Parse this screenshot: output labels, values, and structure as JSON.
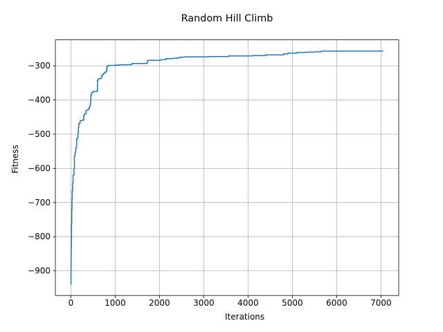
{
  "chart_data": {
    "type": "line",
    "title": "Random Hill Climb",
    "xlabel": "Iterations",
    "ylabel": "Fitness",
    "xlim": [
      -350,
      7400
    ],
    "ylim": [
      -972,
      -224
    ],
    "xticks": [
      0,
      1000,
      2000,
      3000,
      4000,
      5000,
      6000,
      7000
    ],
    "yticks": [
      -900,
      -800,
      -700,
      -600,
      -500,
      -400,
      -300
    ],
    "xtick_labels": [
      "0",
      "1000",
      "2000",
      "3000",
      "4000",
      "5000",
      "6000",
      "7000"
    ],
    "ytick_labels": [
      "−900",
      "−800",
      "−700",
      "−600",
      "−500",
      "−400",
      "−300"
    ],
    "grid": true,
    "legend": "none",
    "line_color": "#1f77b4",
    "series": [
      {
        "values": [
          [
            0,
            -940
          ],
          [
            2,
            -900
          ],
          [
            5,
            -855
          ],
          [
            8,
            -830
          ],
          [
            12,
            -800
          ],
          [
            15,
            -760
          ],
          [
            20,
            -720
          ],
          [
            25,
            -690
          ],
          [
            30,
            -665
          ],
          [
            40,
            -640
          ],
          [
            50,
            -620
          ],
          [
            65,
            -617
          ],
          [
            70,
            -600
          ],
          [
            80,
            -563
          ],
          [
            95,
            -553
          ],
          [
            110,
            -540
          ],
          [
            125,
            -537
          ],
          [
            130,
            -515
          ],
          [
            145,
            -510
          ],
          [
            160,
            -495
          ],
          [
            170,
            -480
          ],
          [
            180,
            -468
          ],
          [
            210,
            -460
          ],
          [
            270,
            -458
          ],
          [
            290,
            -445
          ],
          [
            310,
            -440
          ],
          [
            340,
            -430
          ],
          [
            390,
            -425
          ],
          [
            420,
            -418
          ],
          [
            440,
            -408
          ],
          [
            450,
            -385
          ],
          [
            470,
            -378
          ],
          [
            500,
            -375
          ],
          [
            580,
            -374
          ],
          [
            600,
            -342
          ],
          [
            620,
            -338
          ],
          [
            650,
            -337
          ],
          [
            690,
            -330
          ],
          [
            710,
            -325
          ],
          [
            740,
            -322
          ],
          [
            770,
            -318
          ],
          [
            800,
            -316
          ],
          [
            810,
            -302
          ],
          [
            840,
            -299
          ],
          [
            990,
            -298
          ],
          [
            1100,
            -297
          ],
          [
            1350,
            -296
          ],
          [
            1380,
            -293
          ],
          [
            1700,
            -292
          ],
          [
            1730,
            -284
          ],
          [
            2000,
            -283
          ],
          [
            2050,
            -282
          ],
          [
            2150,
            -279
          ],
          [
            2300,
            -278
          ],
          [
            2400,
            -277
          ],
          [
            2450,
            -275
          ],
          [
            2550,
            -274
          ],
          [
            3100,
            -273
          ],
          [
            3550,
            -271
          ],
          [
            4100,
            -270
          ],
          [
            4400,
            -268
          ],
          [
            4800,
            -265
          ],
          [
            4900,
            -263
          ],
          [
            5100,
            -261
          ],
          [
            5300,
            -260
          ],
          [
            5500,
            -259
          ],
          [
            5650,
            -257
          ],
          [
            7050,
            -257
          ]
        ]
      }
    ]
  }
}
